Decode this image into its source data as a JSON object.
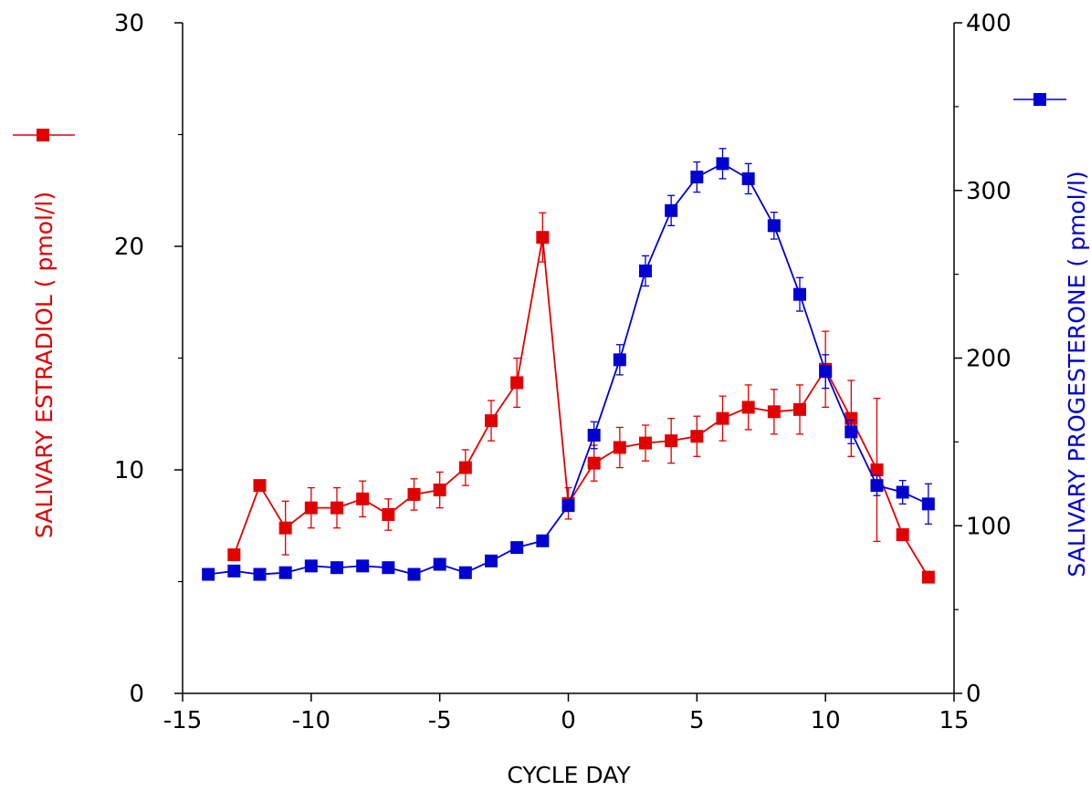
{
  "chart_data": {
    "type": "line",
    "xlabel": "CYCLE DAY",
    "ylabel_left": "SALIVARY ESTRADIOL (   pmol/l)",
    "ylabel_right": "SALIVARY PROGESTERONE (   pmol/l)",
    "xlim": [
      -15,
      15
    ],
    "ylim_left": [
      0,
      30
    ],
    "ylim_right": [
      0,
      400
    ],
    "x_ticks": [
      -15,
      -10,
      -5,
      0,
      5,
      10,
      15
    ],
    "x_tick_labels": [
      "-15",
      "-10",
      "-5",
      "0",
      "5",
      "10",
      "15"
    ],
    "y_left_ticks": [
      0,
      10,
      20,
      30
    ],
    "y_left_tick_labels": [
      "0",
      "10",
      "20",
      "30"
    ],
    "y_left_minor_ticks": [
      5,
      15,
      25
    ],
    "y_right_ticks": [
      0,
      100,
      200,
      300,
      400
    ],
    "y_right_tick_labels": [
      "0",
      "100",
      "200",
      "300",
      "400"
    ],
    "y_right_minor_ticks": [
      50,
      150,
      250,
      350
    ],
    "grid": false,
    "series": [
      {
        "axis": "left",
        "color": "#e00000",
        "marker": "square",
        "x": [
          -13,
          -12,
          -11,
          -10,
          -9,
          -8,
          -7,
          -6,
          -5,
          -4,
          -3,
          -2,
          -1,
          0,
          1,
          2,
          3,
          4,
          5,
          6,
          7,
          8,
          9,
          10,
          11,
          12,
          13,
          14
        ],
        "y": [
          6.2,
          9.3,
          7.4,
          8.3,
          8.3,
          8.7,
          8.0,
          8.9,
          9.1,
          10.1,
          12.2,
          13.9,
          20.4,
          8.5,
          10.3,
          11.0,
          11.2,
          11.3,
          11.5,
          12.3,
          12.8,
          12.6,
          12.7,
          14.5,
          12.3,
          10.0,
          7.1,
          5.2
        ],
        "error": [
          0,
          0,
          1.2,
          0.9,
          0.9,
          0.8,
          0.7,
          0.7,
          0.8,
          0.8,
          0.9,
          1.1,
          1.1,
          0.7,
          0.8,
          0.9,
          0.8,
          1.0,
          0.9,
          1.0,
          1.0,
          1.0,
          1.1,
          1.7,
          1.7,
          3.2,
          0,
          0
        ]
      },
      {
        "axis": "right",
        "color": "#0000d0",
        "marker": "square",
        "x": [
          -14,
          -13,
          -12,
          -11,
          -10,
          -9,
          -8,
          -7,
          -6,
          -5,
          -4,
          -3,
          -2,
          -1,
          0,
          1,
          2,
          3,
          4,
          5,
          6,
          7,
          8,
          9,
          10,
          11,
          12,
          13,
          14
        ],
        "y": [
          71,
          73,
          71,
          72,
          76,
          75,
          76,
          75,
          71,
          77,
          72,
          79,
          87,
          91,
          112,
          154,
          199,
          252,
          288,
          308,
          316,
          307,
          279,
          238,
          192,
          156,
          124,
          120,
          113
        ],
        "error": [
          0,
          0,
          0,
          0,
          0,
          0,
          0,
          0,
          0,
          0,
          0,
          0,
          0,
          0,
          0,
          8,
          9,
          9,
          9,
          9,
          9,
          9,
          8,
          10,
          10,
          7,
          6,
          7,
          12
        ]
      }
    ]
  }
}
